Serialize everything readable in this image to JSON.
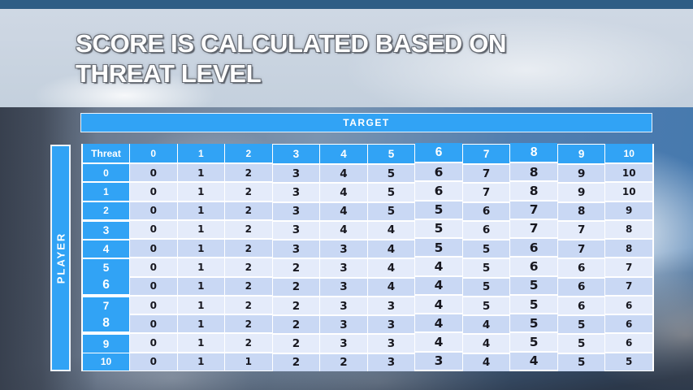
{
  "slide": {
    "title_line1": "SCORE IS CALCULATED BASED ON",
    "title_line2": "THREAT LEVEL"
  },
  "matrix": {
    "target_label": "TARGET",
    "player_label": "PLAYER",
    "corner_label": "Threat",
    "col_headers": [
      "0",
      "1",
      "2",
      "3",
      "4",
      "5",
      "6",
      "7",
      "8",
      "9",
      "10"
    ],
    "row_headers": [
      "0",
      "1",
      "2",
      "3",
      "4",
      "5",
      "6",
      "7",
      "8",
      "9",
      "10"
    ],
    "values": [
      [
        0,
        1,
        2,
        3,
        4,
        5,
        6,
        7,
        8,
        9,
        10
      ],
      [
        0,
        1,
        2,
        3,
        4,
        5,
        6,
        7,
        8,
        9,
        10
      ],
      [
        0,
        1,
        2,
        3,
        4,
        5,
        5,
        6,
        7,
        8,
        9
      ],
      [
        0,
        1,
        2,
        3,
        4,
        4,
        5,
        6,
        7,
        7,
        8
      ],
      [
        0,
        1,
        2,
        3,
        3,
        4,
        5,
        5,
        6,
        7,
        8
      ],
      [
        0,
        1,
        2,
        2,
        3,
        4,
        4,
        5,
        6,
        6,
        7
      ],
      [
        0,
        1,
        2,
        2,
        3,
        4,
        4,
        5,
        5,
        6,
        7
      ],
      [
        0,
        1,
        2,
        2,
        3,
        3,
        4,
        5,
        5,
        6,
        6
      ],
      [
        0,
        1,
        2,
        2,
        3,
        3,
        4,
        4,
        5,
        5,
        6
      ],
      [
        0,
        1,
        2,
        2,
        3,
        3,
        4,
        4,
        5,
        5,
        6
      ],
      [
        0,
        1,
        1,
        2,
        2,
        3,
        3,
        4,
        4,
        5,
        5
      ]
    ]
  },
  "colors": {
    "accent_blue": "#31a3f5",
    "top_bar_blue": "#2e5d85",
    "row_even_bg": "#c9d8f4",
    "row_odd_bg": "#e4ebfa",
    "header_text": "#ffffff",
    "cell_text": "#17171f"
  }
}
